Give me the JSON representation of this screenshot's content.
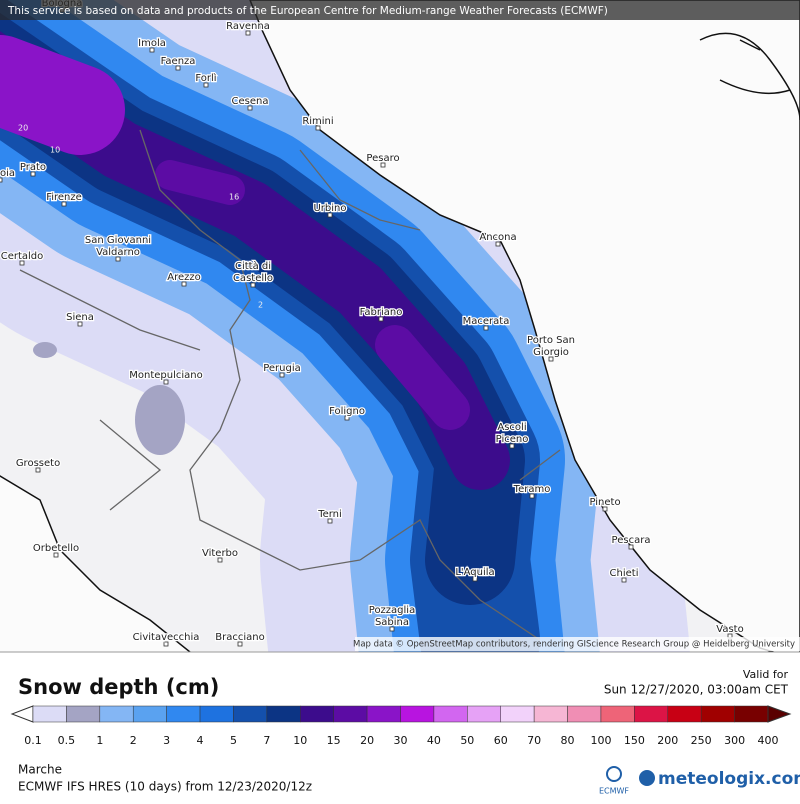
{
  "banner": "This service is based on data and products of the European Centre for Medium-range Weather Forecasts (ECMWF)",
  "map": {
    "cities": [
      [
        "Bologna"
      ],
      [
        "Ravenna"
      ],
      [
        "Imola"
      ],
      [
        "Faenza"
      ],
      [
        "Forlì"
      ],
      [
        "Cesena"
      ],
      [
        "Rimini"
      ],
      [
        "Pesaro"
      ],
      [
        "oia"
      ],
      [
        "Prato"
      ],
      [
        "Firenze"
      ],
      [
        "Urbino"
      ],
      [
        "Ancona"
      ],
      [
        "San Giovanni",
        "Valdarno"
      ],
      [
        "Certaldo"
      ],
      [
        "Arezzo"
      ],
      [
        "Città di",
        "Castello"
      ],
      [
        "Fabriano"
      ],
      [
        "Macerata"
      ],
      [
        "Porto San",
        "Giorgio"
      ],
      [
        "Siena"
      ],
      [
        "Montepulciano"
      ],
      [
        "Perugia"
      ],
      [
        "Foligno"
      ],
      [
        "Ascoli",
        "Piceno"
      ],
      [
        "Grosseto"
      ],
      [
        "Teramo"
      ],
      [
        "Pineto"
      ],
      [
        "Terni"
      ],
      [
        "Pescara"
      ],
      [
        "Orbetello"
      ],
      [
        "Viterbo"
      ],
      [
        "L'Aquila"
      ],
      [
        "Chieti"
      ],
      [
        "Pozzaglia",
        "Sabina"
      ],
      [
        "Civitavecchia"
      ],
      [
        "Bracciano"
      ],
      [
        "Vasto"
      ]
    ],
    "contour_labels": [
      "20",
      "10",
      "16",
      "2"
    ],
    "attribution": "Map data © OpenStreetMap contributors, rendering GIScience Research Group @ Heidelberg University"
  },
  "legend": {
    "title": "Snow depth (cm)",
    "valid_label": "Valid for",
    "valid_time": "Sun 12/27/2020, 03:00am CET",
    "ticks": [
      0.1,
      0.5,
      1,
      2,
      3,
      4,
      5,
      7,
      10,
      15,
      20,
      30,
      40,
      50,
      60,
      70,
      80,
      100,
      150,
      200,
      250,
      300,
      400
    ],
    "colors": [
      "#dcdcf6",
      "#a4a4c4",
      "#84b6f4",
      "#5aa2f0",
      "#3088f0",
      "#1e72e0",
      "#1450ac",
      "#0c3484",
      "#3c0c8c",
      "#5c0ca4",
      "#8a14c8",
      "#b814e0",
      "#d266f0",
      "#e6a2f6",
      "#f2d2fa",
      "#f6b6d4",
      "#f08eb4",
      "#ee6478",
      "#dc1446",
      "#c80014",
      "#a00000",
      "#780000"
    ]
  },
  "footer": {
    "region": "Marche",
    "model": "ECMWF IFS HRES (10 days) from 12/23/2020/12z",
    "ecmwf": "ECMWF",
    "brand": "meteologix.com"
  }
}
